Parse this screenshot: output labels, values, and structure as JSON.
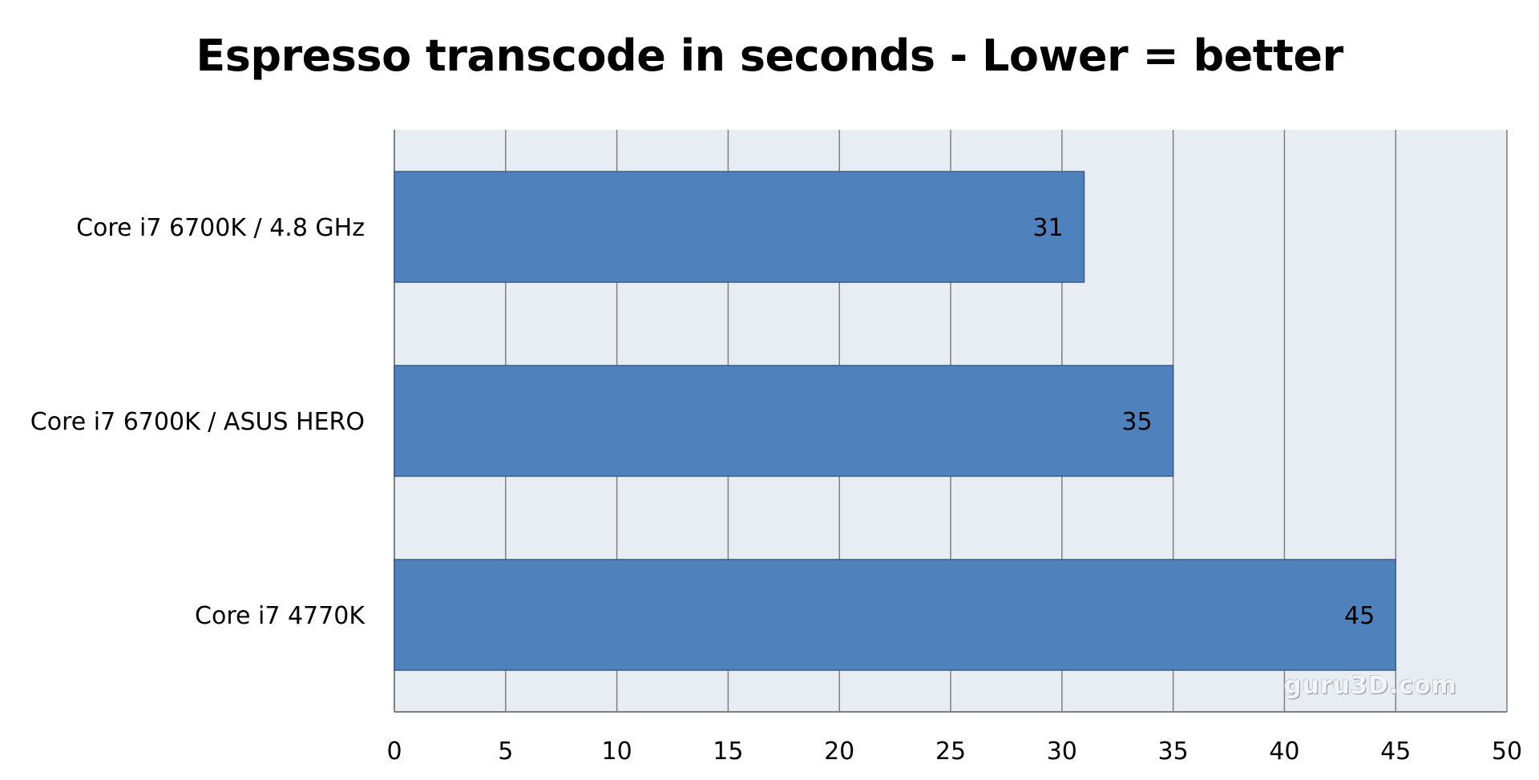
{
  "chart_data": {
    "type": "bar",
    "orientation": "horizontal",
    "title": "Espresso transcode in seconds - Lower = better",
    "xlabel": "",
    "ylabel": "",
    "categories": [
      "Core i7 6700K / 4.8 GHz",
      "Core i7 6700K / ASUS HERO",
      "Core i7 4770K"
    ],
    "values": [
      31,
      35,
      45
    ],
    "data_labels": [
      "31",
      "35",
      "45"
    ],
    "xlim": [
      0,
      50
    ],
    "x_ticks": [
      0,
      5,
      10,
      15,
      20,
      25,
      30,
      35,
      40,
      45,
      50
    ],
    "x_tick_labels": [
      "0",
      "5",
      "10",
      "15",
      "20",
      "25",
      "30",
      "35",
      "40",
      "45",
      "50"
    ],
    "grid": "vertical",
    "legend": "none",
    "colors": {
      "bar": "#4f81bd",
      "bar_edge": "#385d8a",
      "plot_background": "#e8edf4",
      "gridline": "#7f7f7f"
    }
  },
  "watermark": "guru3D.com"
}
